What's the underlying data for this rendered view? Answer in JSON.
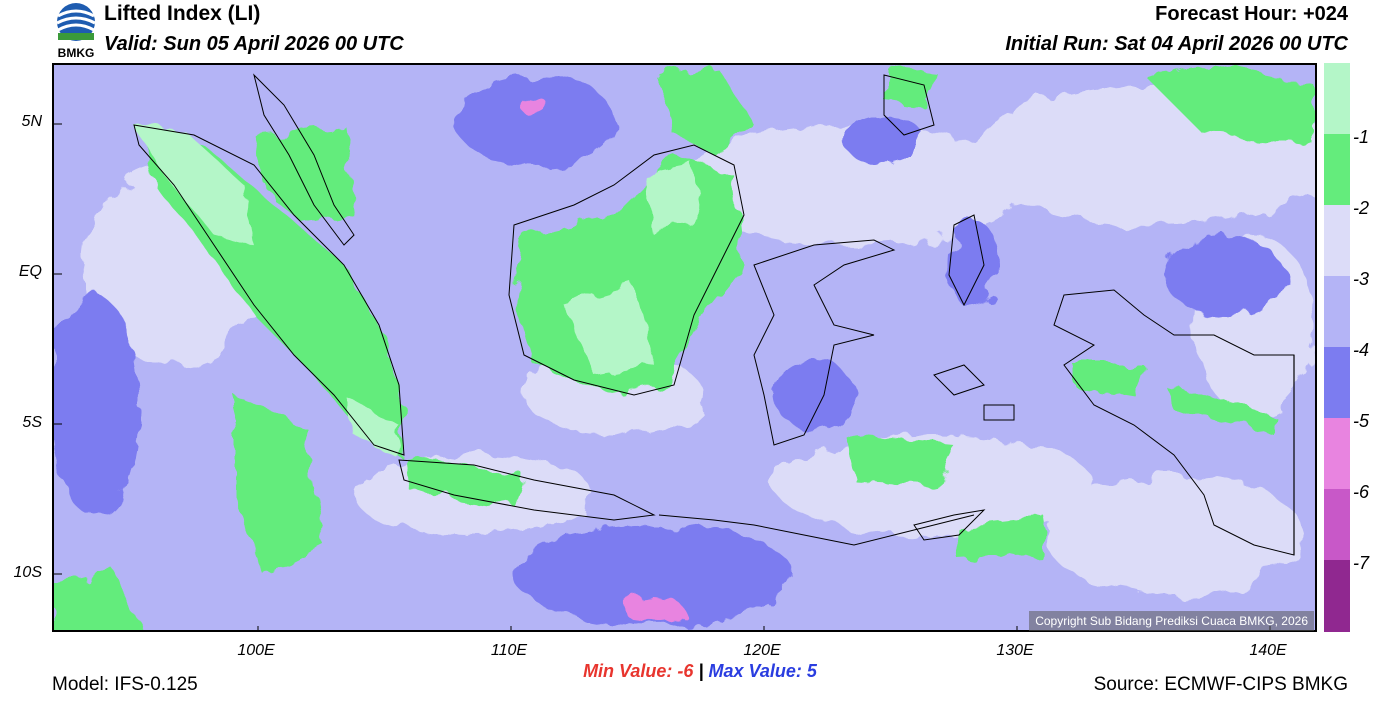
{
  "header": {
    "logo_text": "BMKG",
    "title": "Lifted Index (LI)",
    "valid": "Valid: Sun 05 April 2026 00 UTC",
    "forecast_hour": "Forecast Hour: +024",
    "initial_run": "Initial Run: Sat 04 April 2026 00 UTC"
  },
  "map": {
    "y_ticks": [
      "5N",
      "EQ",
      "5S",
      "10S"
    ],
    "x_ticks": [
      "100E",
      "110E",
      "120E",
      "130E",
      "140E"
    ],
    "copyright": "Copyright Sub Bidang Prediksi Cuaca BMKG, 2026"
  },
  "colorbar": {
    "labels": [
      "-1",
      "-2",
      "-3",
      "-4",
      "-5",
      "-6",
      "-7"
    ],
    "colors": [
      "#b4f6c8",
      "#64ec7c",
      "#dcdcf8",
      "#b4b4f6",
      "#7c7cf0",
      "#e884e0",
      "#c858c8",
      "#902890"
    ]
  },
  "footer": {
    "min_label": "Min Value:",
    "min_value": "-6",
    "separator": "|",
    "max_label": "Max Value:",
    "max_value": "5",
    "model": "Model: IFS-0.125",
    "source": "Source: ECMWF-CIPS BMKG"
  }
}
